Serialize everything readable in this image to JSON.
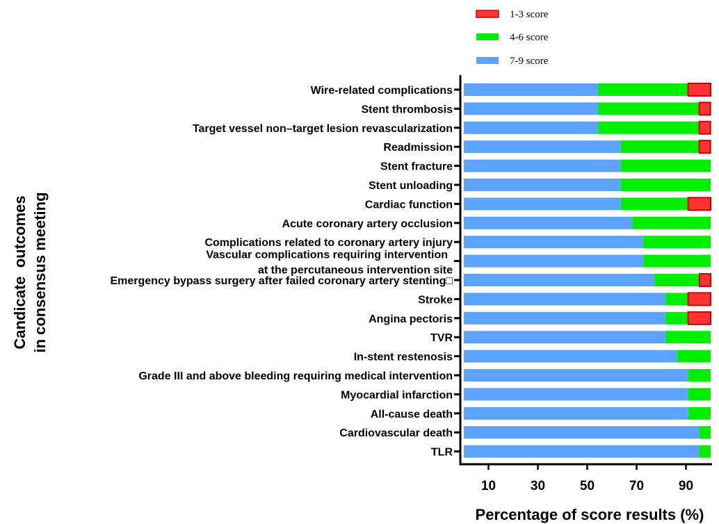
{
  "chart_data": {
    "type": "bar",
    "orientation": "horizontal",
    "stacked": true,
    "xlabel": "Percentage of score results (%)",
    "ylabel_lines": [
      "Candicate  outcomes",
      "in consensus meeting"
    ],
    "xlim": [
      0,
      100
    ],
    "xticks": [
      10,
      30,
      50,
      70,
      90
    ],
    "legend_position": "top",
    "colors": {
      "low": "#ff3333",
      "mid": "#00ee00",
      "high": "#5ba3ff"
    },
    "legend": [
      {
        "key": "low",
        "label": "1-3 score"
      },
      {
        "key": "mid",
        "label": "4-6 score"
      },
      {
        "key": "high",
        "label": "7-9  score"
      }
    ],
    "categories": [
      [
        "Wire-related complications"
      ],
      [
        "Stent thrombosis"
      ],
      [
        "Target vessel non–target lesion revascularization"
      ],
      [
        "Readmission"
      ],
      [
        "Stent fracture"
      ],
      [
        "Stent unloading"
      ],
      [
        "Cardiac function"
      ],
      [
        "Acute coronary artery occlusion"
      ],
      [
        "Complications related to coronary artery injury"
      ],
      [
        "Vascular complications requiring intervention",
        "at the percutaneous intervention site"
      ],
      [
        "Emergency bypass surgery after failed coronary artery stenting□"
      ],
      [
        "Stroke"
      ],
      [
        "Angina pectoris"
      ],
      [
        "TVR"
      ],
      [
        "In-stent restenosis"
      ],
      [
        "Grade III and above bleeding requiring medical intervention"
      ],
      [
        "Myocardial infarction"
      ],
      [
        "All-cause death"
      ],
      [
        "Cardiovascular death"
      ],
      [
        "TLR"
      ]
    ],
    "series": [
      {
        "name": "7-9  score",
        "key": "high",
        "values": [
          54.5,
          54.5,
          54.5,
          63.6,
          63.6,
          63.6,
          63.6,
          68.2,
          72.7,
          72.7,
          77.3,
          81.8,
          81.8,
          81.8,
          86.4,
          90.9,
          90.9,
          90.9,
          95.5,
          95.5
        ]
      },
      {
        "name": "4-6 score",
        "key": "mid",
        "values": [
          36.4,
          40.9,
          40.9,
          31.8,
          36.4,
          36.4,
          27.3,
          31.8,
          27.3,
          27.3,
          18.2,
          9.1,
          9.1,
          18.2,
          13.6,
          9.1,
          9.1,
          9.1,
          4.5,
          4.5
        ]
      },
      {
        "name": "1-3 score",
        "key": "low",
        "values": [
          9.1,
          4.5,
          4.5,
          4.5,
          0,
          0,
          9.1,
          0,
          0,
          0,
          4.5,
          9.1,
          9.1,
          0,
          0,
          0,
          0,
          0,
          0,
          0
        ]
      }
    ]
  }
}
